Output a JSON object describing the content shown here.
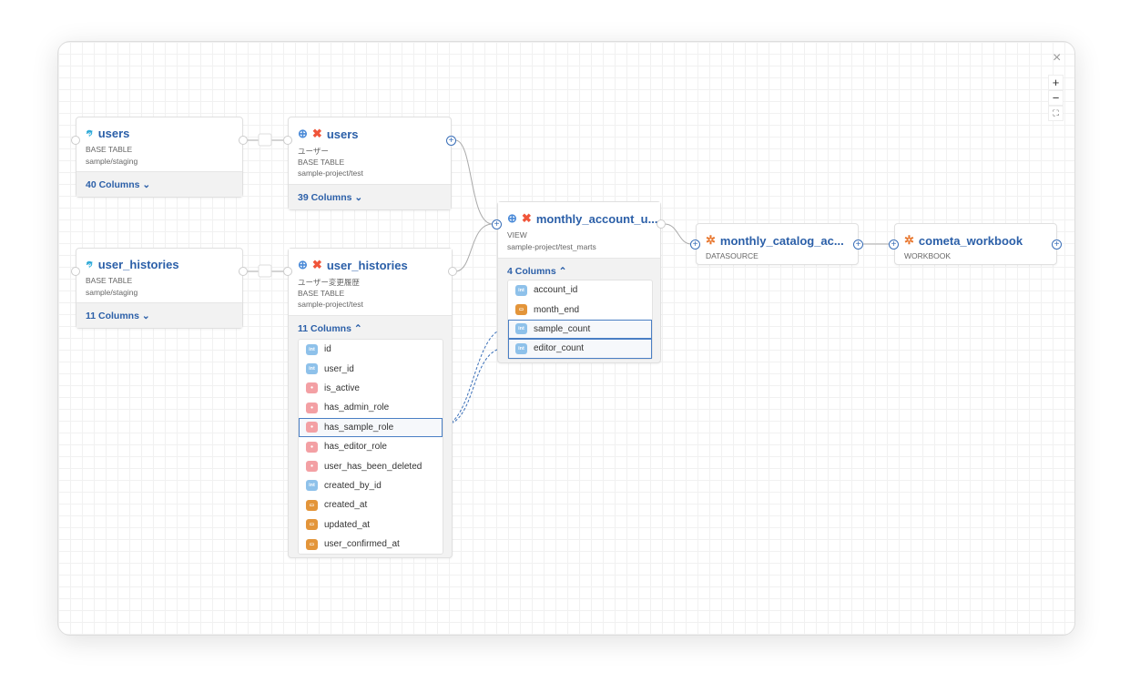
{
  "controls": {
    "close": "×",
    "zoom_in": "+",
    "zoom_out": "−",
    "fit": "⛶"
  },
  "nodes": {
    "users_src": {
      "title": "users",
      "type": "BASE TABLE",
      "path": "sample/staging",
      "columns": "40 Columns",
      "icon": "mysql-icon"
    },
    "users_dbt": {
      "title": "users",
      "description": "ユーザー",
      "type": "BASE TABLE",
      "path": "sample-project/test",
      "columns": "39 Columns",
      "icon": "dbt-icon"
    },
    "hist_src": {
      "title": "user_histories",
      "type": "BASE TABLE",
      "path": "sample/staging",
      "columns": "11 Columns",
      "icon": "mysql-icon"
    },
    "hist_dbt": {
      "title": "user_histories",
      "description": "ユーザー変更履歴",
      "type": "BASE TABLE",
      "path": "sample-project/test",
      "columns": "11 Columns",
      "fields": [
        {
          "name": "id",
          "type": "int"
        },
        {
          "name": "user_id",
          "type": "int"
        },
        {
          "name": "is_active",
          "type": "bool"
        },
        {
          "name": "has_admin_role",
          "type": "bool"
        },
        {
          "name": "has_sample_role",
          "type": "bool",
          "selected": true
        },
        {
          "name": "has_editor_role",
          "type": "bool"
        },
        {
          "name": "user_has_been_deleted",
          "type": "bool"
        },
        {
          "name": "created_by_id",
          "type": "int"
        },
        {
          "name": "created_at",
          "type": "date"
        },
        {
          "name": "updated_at",
          "type": "date"
        },
        {
          "name": "user_confirmed_at",
          "type": "date"
        }
      ]
    },
    "monthly": {
      "title": "monthly_account_u...",
      "type": "VIEW",
      "path": "sample-project/test_marts",
      "columns": "4 Columns",
      "fields": [
        {
          "name": "account_id",
          "type": "int"
        },
        {
          "name": "month_end",
          "type": "date"
        },
        {
          "name": "sample_count",
          "type": "int",
          "selected": true
        },
        {
          "name": "editor_count",
          "type": "int",
          "selected": true
        }
      ]
    },
    "catalog": {
      "title": "monthly_catalog_ac...",
      "type": "DATASOURCE",
      "icon": "tableau-icon"
    },
    "workbook": {
      "title": "cometa_workbook",
      "type": "WORKBOOK",
      "icon": "tableau-icon"
    }
  },
  "type_label": "int",
  "colors": {
    "accent": "#2b5fa8",
    "int": "#8ec1ea",
    "bool": "#f3a0a4",
    "date": "#e3953a"
  }
}
